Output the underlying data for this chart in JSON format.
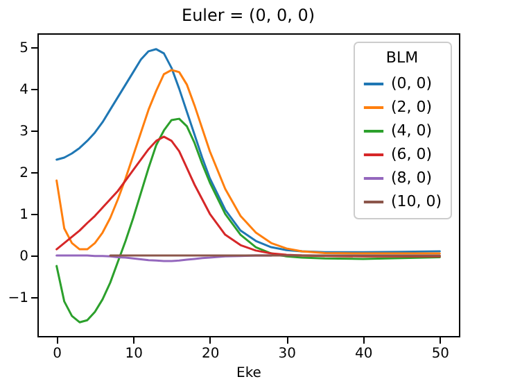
{
  "chart_data": {
    "type": "line",
    "title": "Euler = (0, 0, 0)",
    "xlabel": "Eke",
    "legend_title": "BLM",
    "legend": "top right",
    "grid": false,
    "x": [
      0,
      1,
      2,
      3,
      4,
      5,
      6,
      7,
      8,
      9,
      10,
      11,
      12,
      13,
      14,
      15,
      16,
      17,
      18,
      19,
      20,
      22,
      24,
      26,
      28,
      30,
      32,
      35,
      40,
      45,
      50
    ],
    "xlim": [
      -2.5,
      52.5
    ],
    "xticks": [
      0,
      10,
      20,
      30,
      40,
      50
    ],
    "ylim": [
      -1.93,
      5.33
    ],
    "yticks": [
      -1,
      0,
      1,
      2,
      3,
      4,
      5
    ],
    "series": [
      {
        "name": "(0, 0)",
        "color": "#1f77b4",
        "values": [
          2.3,
          2.35,
          2.45,
          2.58,
          2.75,
          2.95,
          3.2,
          3.5,
          3.8,
          4.1,
          4.4,
          4.7,
          4.9,
          4.95,
          4.85,
          4.5,
          4.0,
          3.45,
          2.9,
          2.35,
          1.85,
          1.1,
          0.6,
          0.35,
          0.2,
          0.13,
          0.1,
          0.08,
          0.08,
          0.09,
          0.1
        ]
      },
      {
        "name": "(2, 0)",
        "color": "#ff7f0e",
        "values": [
          1.8,
          0.65,
          0.3,
          0.15,
          0.15,
          0.3,
          0.55,
          0.9,
          1.35,
          1.85,
          2.4,
          2.95,
          3.5,
          3.95,
          4.35,
          4.45,
          4.4,
          4.1,
          3.6,
          3.05,
          2.5,
          1.6,
          0.95,
          0.55,
          0.3,
          0.17,
          0.1,
          0.06,
          0.05,
          0.05,
          0.05
        ]
      },
      {
        "name": "(4, 0)",
        "color": "#2ca02c",
        "values": [
          -0.25,
          -1.1,
          -1.45,
          -1.6,
          -1.55,
          -1.35,
          -1.05,
          -0.65,
          -0.15,
          0.35,
          0.9,
          1.5,
          2.1,
          2.65,
          3.0,
          3.25,
          3.28,
          3.1,
          2.7,
          2.2,
          1.75,
          1.0,
          0.5,
          0.2,
          0.05,
          -0.02,
          -0.05,
          -0.07,
          -0.08,
          -0.06,
          -0.04
        ]
      },
      {
        "name": "(6, 0)",
        "color": "#d62728",
        "values": [
          0.15,
          0.3,
          0.45,
          0.6,
          0.78,
          0.95,
          1.15,
          1.35,
          1.55,
          1.8,
          2.05,
          2.3,
          2.55,
          2.75,
          2.85,
          2.75,
          2.5,
          2.1,
          1.7,
          1.35,
          1.0,
          0.5,
          0.25,
          0.12,
          0.05,
          0.02,
          0,
          -0.01,
          -0.02,
          -0.02,
          -0.02
        ]
      },
      {
        "name": "(8, 0)",
        "color": "#9467bd",
        "values": [
          0,
          0,
          0,
          0,
          0,
          -0.01,
          -0.01,
          -0.02,
          -0.04,
          -0.05,
          -0.07,
          -0.09,
          -0.11,
          -0.12,
          -0.13,
          -0.13,
          -0.12,
          -0.1,
          -0.08,
          -0.06,
          -0.05,
          -0.02,
          -0.01,
          0,
          0,
          null,
          null,
          null,
          null,
          null,
          null
        ]
      },
      {
        "name": "(10, 0)",
        "color": "#8c564b",
        "x": [
          7,
          50
        ],
        "values": [
          0,
          0
        ]
      }
    ]
  }
}
